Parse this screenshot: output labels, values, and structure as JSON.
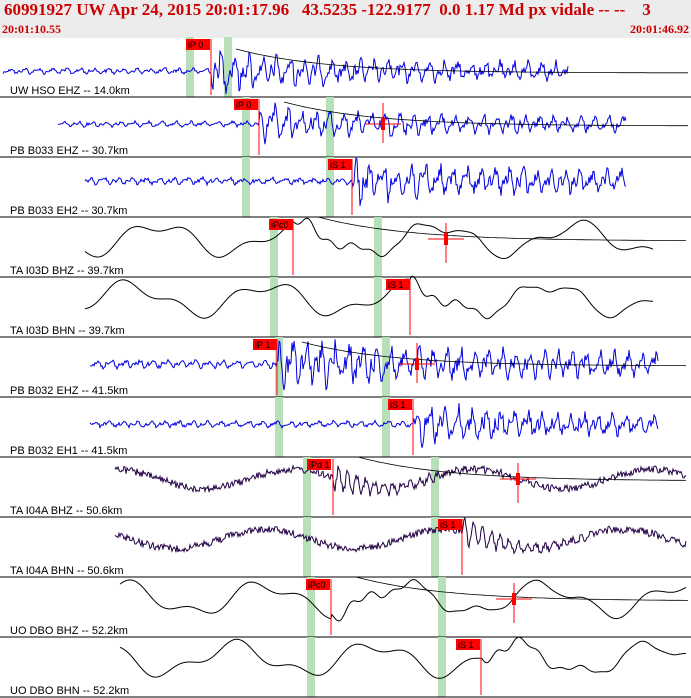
{
  "header": {
    "title": "60991927 UW Apr 24, 2015 20:01:17.96   43.5235 -122.9177  0.0 1.17 Md px vidale -- --    3",
    "start_time": "20:01:10.55",
    "end_time": "20:01:46.92"
  },
  "colors": {
    "header_text": "#cc0000",
    "high_freq_trace": "#0000dd",
    "broadband_trace": "#000000",
    "mixed_trace": "#220044",
    "pick_flag": "#ff0000",
    "window_band": "#b8e0b8"
  },
  "chart_data": {
    "type": "line",
    "title": "60991927 UW Apr 24, 2015 20:01:17.96   43.5235 -122.9177  0.0 1.17 Md px vidale -- --    3",
    "xlabel": "",
    "ylabel": "",
    "x_range": [
      "20:01:10.55",
      "20:01:46.92"
    ],
    "grid": false,
    "series": [
      {
        "name": "UW HSO EHZ -- 14.0km",
        "pick": "iP 0",
        "channel_type": "high-frequency"
      },
      {
        "name": "PB B033 EHZ -- 30.7km",
        "pick": "iP 0",
        "channel_type": "high-frequency"
      },
      {
        "name": "PB B033 EH2 -- 30.7km",
        "pick": "iS 1",
        "channel_type": "high-frequency"
      },
      {
        "name": "TA I03D BHZ -- 39.7km",
        "pick": "iPc0",
        "channel_type": "broadband"
      },
      {
        "name": "TA I03D BHN -- 39.7km",
        "pick": "iS 1",
        "channel_type": "broadband"
      },
      {
        "name": "PB B032 EHZ -- 41.5km",
        "pick": "iP 1",
        "channel_type": "high-frequency"
      },
      {
        "name": "PB B032 EH1 -- 41.5km",
        "pick": "iS 1",
        "channel_type": "high-frequency"
      },
      {
        "name": "TA I04A BHZ -- 50.6km",
        "pick": "iPd 1",
        "channel_type": "mixed"
      },
      {
        "name": "TA I04A BHN -- 50.6km",
        "pick": "iS 1",
        "channel_type": "mixed"
      },
      {
        "name": "UO DBO BHZ -- 52.2km",
        "pick": "iPc0",
        "channel_type": "broadband"
      },
      {
        "name": "UO DBO BHN -- 52.2km",
        "pick": "iS 1",
        "channel_type": "broadband"
      }
    ]
  }
}
